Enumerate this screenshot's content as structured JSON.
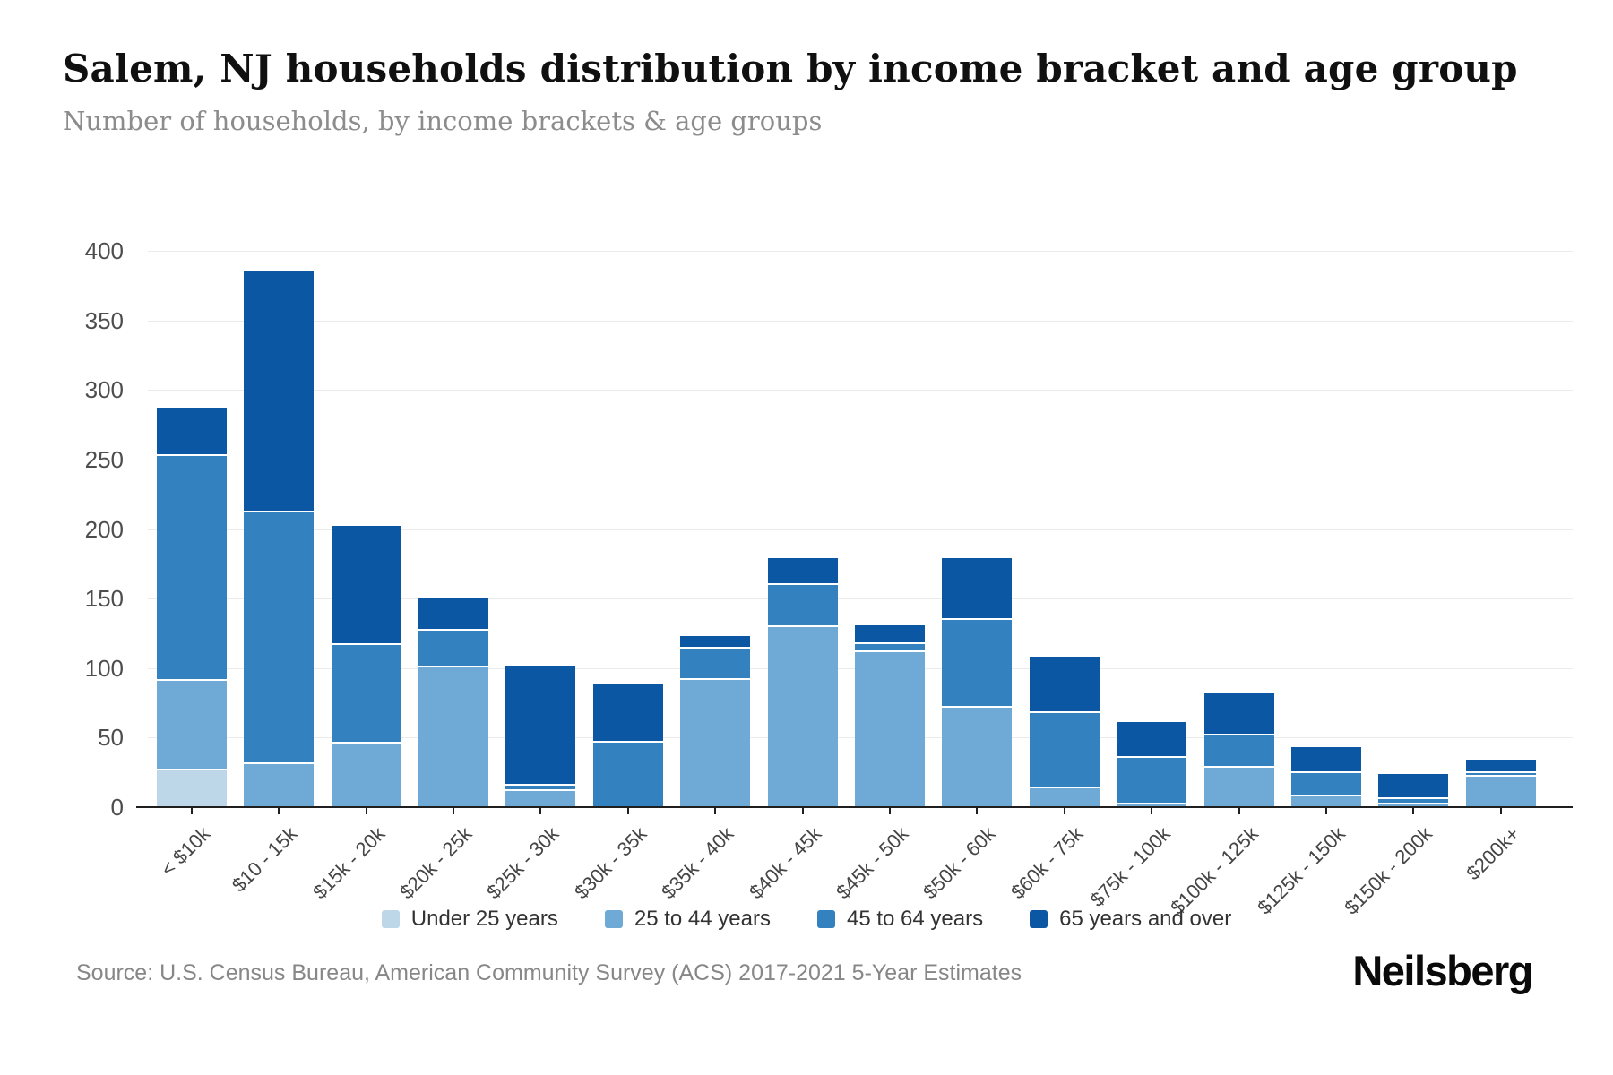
{
  "header": {
    "title": "Salem, NJ households distribution by income bracket and age group",
    "subtitle": "Number of households, by income brackets & age groups"
  },
  "chart_data": {
    "type": "bar",
    "stacked": true,
    "title": "Salem, NJ households distribution by income bracket and age group",
    "subtitle": "Number of households, by income brackets & age groups",
    "xlabel": "",
    "ylabel": "",
    "ylim": [
      0,
      400
    ],
    "ytick_step": 50,
    "yticks": [
      0,
      50,
      100,
      150,
      200,
      250,
      300,
      350,
      400
    ],
    "grid": true,
    "legend_position": "bottom",
    "categories": [
      "< $10k",
      "$10 - 15k",
      "$15k - 20k",
      "$20k - 25k",
      "$25k - 30k",
      "$30k - 35k",
      "$35k - 40k",
      "$40k - 45k",
      "$45k - 50k",
      "$50k - 60k",
      "$60k - 75k",
      "$75k - 100k",
      "$100k - 125k",
      "$125k - 150k",
      "$150k - 200k",
      "$200k+"
    ],
    "series": [
      {
        "name": "Under 25 years",
        "color": "#bdd7e9",
        "values": [
          28,
          0,
          0,
          0,
          0,
          0,
          0,
          0,
          0,
          0,
          0,
          0,
          0,
          0,
          0,
          0
        ]
      },
      {
        "name": "25 to 44 years",
        "color": "#6fa9d5",
        "values": [
          64,
          32,
          47,
          102,
          13,
          0,
          93,
          131,
          113,
          73,
          15,
          3,
          30,
          9,
          3,
          23
        ]
      },
      {
        "name": "45 to 64 years",
        "color": "#3381bf",
        "values": [
          162,
          181,
          71,
          26,
          4,
          48,
          22,
          30,
          6,
          63,
          54,
          34,
          23,
          17,
          4,
          3
        ]
      },
      {
        "name": "65 years and over",
        "color": "#0c57a4",
        "values": [
          33,
          172,
          84,
          22,
          85,
          41,
          8,
          18,
          12,
          43,
          39,
          24,
          29,
          17,
          17,
          8
        ]
      }
    ],
    "totals": [
      287,
      385,
      202,
      150,
      102,
      89,
      123,
      179,
      131,
      179,
      108,
      61,
      82,
      43,
      24,
      34
    ]
  },
  "footer": {
    "source": "Source: U.S. Census Bureau, American Community Survey (ACS) 2017-2021 5-Year Estimates",
    "brand": "Neilsberg"
  }
}
